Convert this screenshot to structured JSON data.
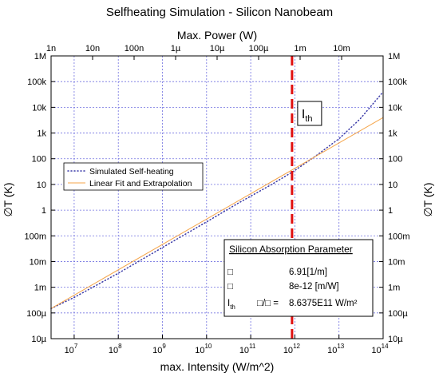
{
  "chart_data": {
    "type": "line",
    "title": "Selfheating Simulation - Silicon Nanobeam",
    "xlabel": "max. Intensity (W/m^2)",
    "x2label": "Max. Power (W)",
    "ylabel": "∅T (K)",
    "y2label": "∅T (K)",
    "x_scale": "log",
    "y_scale": "log",
    "xlim": [
      3000000.0,
      100000000000000.0
    ],
    "ylim": [
      1e-05,
      1000000.0
    ],
    "x2lim": [
      1e-09,
      0.1
    ],
    "grid": true,
    "legend_position": "middle-left",
    "x_ticks": [
      {
        "value": 10000000.0,
        "base": "10",
        "exp": "7"
      },
      {
        "value": 100000000.0,
        "base": "10",
        "exp": "8"
      },
      {
        "value": 1000000000.0,
        "base": "10",
        "exp": "9"
      },
      {
        "value": 10000000000.0,
        "base": "10",
        "exp": "10"
      },
      {
        "value": 100000000000.0,
        "base": "10",
        "exp": "11"
      },
      {
        "value": 1000000000000.0,
        "base": "10",
        "exp": "12"
      },
      {
        "value": 10000000000000.0,
        "base": "10",
        "exp": "13"
      },
      {
        "value": 100000000000000.0,
        "base": "10",
        "exp": "14"
      }
    ],
    "x2_ticks": [
      {
        "value": 1e-09,
        "label": "1n"
      },
      {
        "value": 1e-08,
        "label": "10n"
      },
      {
        "value": 1e-07,
        "label": "100n"
      },
      {
        "value": 1e-06,
        "label": "1µ"
      },
      {
        "value": 1e-05,
        "label": "10µ"
      },
      {
        "value": 0.0001,
        "label": "100µ"
      },
      {
        "value": 0.001,
        "label": "1m"
      },
      {
        "value": 0.01,
        "label": "10m"
      }
    ],
    "y_ticks": [
      {
        "value": 1000000.0,
        "label": "1M"
      },
      {
        "value": 100000.0,
        "label": "100k"
      },
      {
        "value": 10000.0,
        "label": "10k"
      },
      {
        "value": 1000.0,
        "label": "1k"
      },
      {
        "value": 100.0,
        "label": "100"
      },
      {
        "value": 10.0,
        "label": "10"
      },
      {
        "value": 1.0,
        "label": "1"
      },
      {
        "value": 0.1,
        "label": "100m"
      },
      {
        "value": 0.01,
        "label": "10m"
      },
      {
        "value": 0.001,
        "label": "1m"
      },
      {
        "value": 0.0001,
        "label": "100µ"
      },
      {
        "value": 1e-05,
        "label": "10µ"
      }
    ],
    "series": [
      {
        "name": "Simulated Self-heating",
        "style": "dotted",
        "color": "#3a3aa8",
        "x": [
          3000000.0,
          10000000.0,
          100000000.0,
          1000000000.0,
          10000000000.0,
          50000000000.0,
          100000000000.0,
          300000000000.0,
          1000000000000.0,
          3000000000000.0,
          10000000000000.0,
          30000000000000.0,
          100000000000000.0
        ],
        "y": [
          0.00015,
          0.0004,
          0.0035,
          0.035,
          0.35,
          1.8,
          3.5,
          10,
          35,
          130,
          600,
          3500,
          40000
        ]
      },
      {
        "name": "Linear Fit and Extrapolation",
        "style": "solid",
        "color": "#f5a54a",
        "x": [
          3000000.0,
          100000000000000.0
        ],
        "y": [
          0.00015,
          4000
        ]
      }
    ],
    "threshold": {
      "x": 863750000000.0,
      "label_base": "I",
      "label_sub": "th",
      "color": "#e01010"
    },
    "parameter_box": {
      "title": "Silicon Absorption Parameter",
      "rows": [
        {
          "sym": "□",
          "mid": "",
          "value": "6.91[1/m]"
        },
        {
          "sym": "□",
          "mid": "",
          "value": "8e-12 [m/W]"
        },
        {
          "sym_base": "I",
          "sym_sub": "th",
          "mid": "□/□ =",
          "value": "8.6375E11 W/m²"
        }
      ]
    },
    "colors": {
      "grid": "#7070e0",
      "frame": "#000000"
    }
  }
}
